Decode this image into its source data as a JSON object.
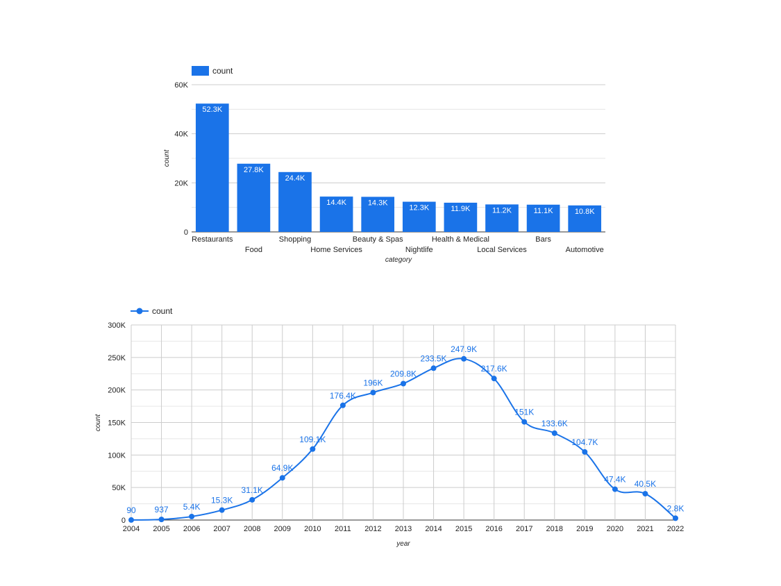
{
  "colors": {
    "series": "#1a73e8",
    "grid": "#cccccc",
    "line_label": "#1a73e8",
    "bar_label": "#ffffff"
  },
  "chart_data": [
    {
      "type": "bar",
      "legend": "count",
      "legend_position": "top-left",
      "xlabel": "category",
      "ylabel": "count",
      "ylim": [
        0,
        60000
      ],
      "yticks": [
        0,
        20000,
        40000,
        60000
      ],
      "ytick_labels": [
        "0",
        "20K",
        "40K",
        "60K"
      ],
      "grid": true,
      "categories": [
        "Restaurants",
        "Food",
        "Shopping",
        "Home Services",
        "Beauty & Spas",
        "Nightlife",
        "Health & Medical",
        "Local Services",
        "Bars",
        "Automotive"
      ],
      "values": [
        52300,
        27800,
        24400,
        14400,
        14300,
        12300,
        11900,
        11200,
        11100,
        10800
      ],
      "value_labels": [
        "52.3K",
        "27.8K",
        "24.4K",
        "14.4K",
        "14.3K",
        "12.3K",
        "11.9K",
        "11.2K",
        "11.1K",
        "10.8K"
      ]
    },
    {
      "type": "line",
      "legend": "count",
      "legend_position": "top-left",
      "xlabel": "year",
      "ylabel": "count",
      "ylim": [
        0,
        300000
      ],
      "yticks": [
        0,
        50000,
        100000,
        150000,
        200000,
        250000,
        300000
      ],
      "ytick_labels": [
        "0",
        "50K",
        "100K",
        "150K",
        "200K",
        "250K",
        "300K"
      ],
      "grid": true,
      "x": [
        "2004",
        "2005",
        "2006",
        "2007",
        "2008",
        "2009",
        "2010",
        "2011",
        "2012",
        "2013",
        "2014",
        "2015",
        "2016",
        "2017",
        "2018",
        "2019",
        "2020",
        "2021",
        "2022"
      ],
      "values": [
        90,
        937,
        5400,
        15300,
        31100,
        64900,
        109100,
        176400,
        196000,
        209800,
        233500,
        247900,
        217600,
        151000,
        133600,
        104700,
        47400,
        40500,
        2800
      ],
      "value_labels": [
        "90",
        "937",
        "5.4K",
        "15.3K",
        "31.1K",
        "64.9K",
        "109.1K",
        "176.4K",
        "196K",
        "209.8K",
        "233.5K",
        "247.9K",
        "217.6K",
        "151K",
        "133.6K",
        "104.7K",
        "47.4K",
        "40.5K",
        "2.8K"
      ]
    }
  ]
}
